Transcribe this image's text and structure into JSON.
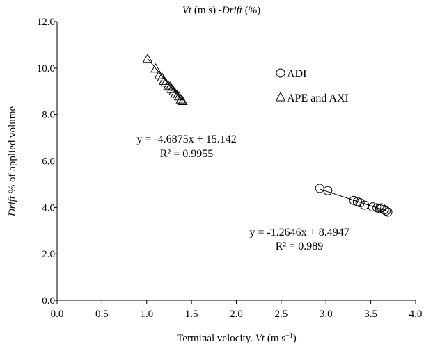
{
  "chart_data": {
    "type": "scatter",
    "title": {
      "italic_a": "Vt",
      "mid": " (m s) -",
      "italic_b": "Drift",
      "tail": " (%)"
    },
    "xlabel": {
      "pre": "Terminal velocity. ",
      "italic": "Vt",
      "post": " (m s",
      "sup": "−1",
      "close": ")"
    },
    "ylabel": {
      "italic": "Drift",
      "post": " % of applied volume"
    },
    "xlim": [
      0,
      4
    ],
    "ylim": [
      0,
      12
    ],
    "x_ticks": [
      "0.0",
      "0.5",
      "1.0",
      "1.5",
      "2.0",
      "2.5",
      "3.0",
      "3.5",
      "4.0"
    ],
    "y_ticks": [
      "0.0",
      "2.0",
      "4.0",
      "6.0",
      "8.0",
      "10.0",
      "12.0"
    ],
    "legend": {
      "position": "upper-right",
      "items": [
        {
          "symbol": "circle",
          "label": "ADI"
        },
        {
          "symbol": "triangle",
          "label": "APE and AXI"
        }
      ]
    },
    "series": [
      {
        "name": "ADI",
        "marker": "circle",
        "points": [
          [
            2.93,
            4.82
          ],
          [
            3.02,
            4.72
          ],
          [
            3.31,
            4.3
          ],
          [
            3.35,
            4.25
          ],
          [
            3.38,
            4.2
          ],
          [
            3.43,
            4.1
          ],
          [
            3.52,
            4.02
          ],
          [
            3.57,
            3.98
          ],
          [
            3.6,
            3.95
          ],
          [
            3.62,
            3.98
          ],
          [
            3.65,
            3.9
          ],
          [
            3.67,
            3.85
          ],
          [
            3.69,
            3.8
          ]
        ],
        "trendline": {
          "slope": -1.2646,
          "intercept": 8.4947,
          "x_range": [
            2.93,
            3.7
          ]
        },
        "equation": "y = -1.2646x + 8.4947",
        "r2": "R² = 0.989"
      },
      {
        "name": "APE and AXI",
        "marker": "triangle",
        "points": [
          [
            1.01,
            10.4
          ],
          [
            1.1,
            9.98
          ],
          [
            1.14,
            9.7
          ],
          [
            1.17,
            9.6
          ],
          [
            1.19,
            9.45
          ],
          [
            1.21,
            9.38
          ],
          [
            1.24,
            9.25
          ],
          [
            1.26,
            9.2
          ],
          [
            1.28,
            9.1
          ],
          [
            1.3,
            9.0
          ],
          [
            1.32,
            8.9
          ],
          [
            1.34,
            8.82
          ],
          [
            1.36,
            8.78
          ],
          [
            1.38,
            8.65
          ],
          [
            1.4,
            8.58
          ]
        ],
        "trendline": {
          "slope": -4.6875,
          "intercept": 15.142,
          "x_range": [
            1.01,
            1.4
          ]
        },
        "equation": "y = -4.6875x + 15.142",
        "r2": "R² = 0.9955"
      }
    ],
    "grid": false
  }
}
